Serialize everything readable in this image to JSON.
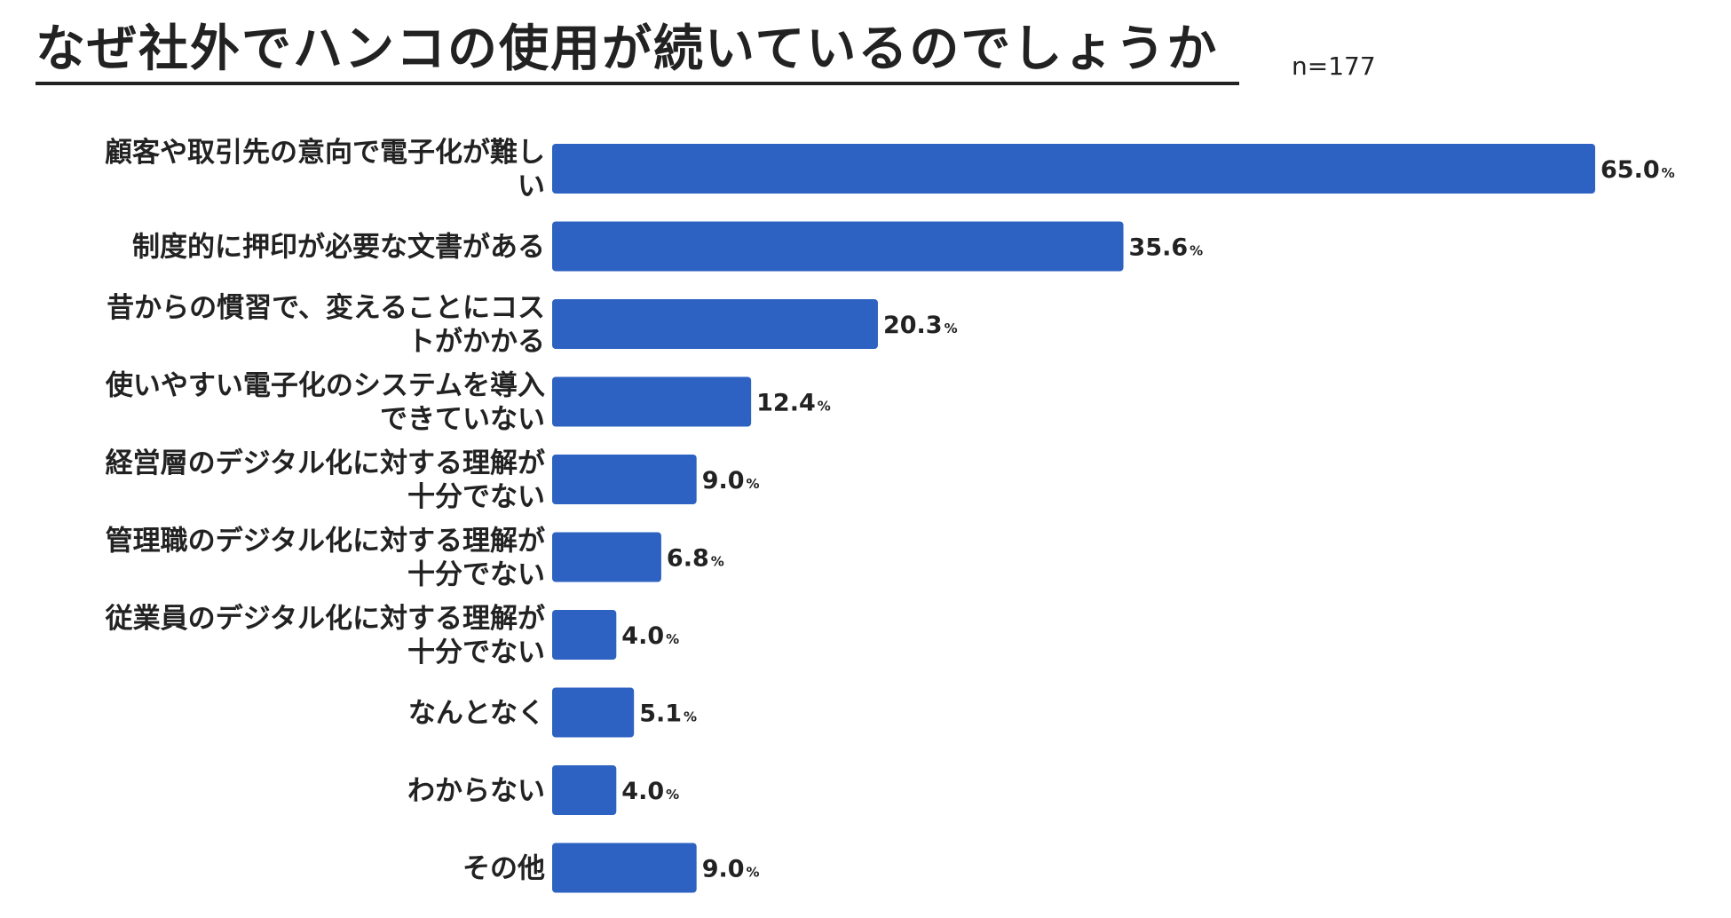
{
  "title": "なぜ社外でハンコの使用が続いているのでしょうか",
  "sample_label": "n=177",
  "colors": {
    "bar": "#2D62C2",
    "text": "#222222"
  },
  "chart_data": {
    "type": "bar",
    "orientation": "horizontal",
    "title": "なぜ社外でハンコの使用が続いているのでしょうか",
    "unit": "%",
    "categories": [
      [
        "顧客や取引先の意向で電子化が難し",
        "い"
      ],
      [
        "制度的に押印が必要な文書がある"
      ],
      [
        "昔からの慣習で、変えることにコス",
        "トがかかる"
      ],
      [
        "使いやすい電子化のシステムを導入",
        "できていない"
      ],
      [
        "経営層のデジタル化に対する理解が",
        "十分でない"
      ],
      [
        "管理職のデジタル化に対する理解が",
        "十分でない"
      ],
      [
        "従業員のデジタル化に対する理解が",
        "十分でない"
      ],
      [
        "なんとなく"
      ],
      [
        "わからない"
      ],
      [
        "その他"
      ]
    ],
    "values": [
      65.0,
      35.6,
      20.3,
      12.4,
      9.0,
      6.8,
      4.0,
      5.1,
      4.0,
      9.0
    ],
    "value_labels": [
      "65.0",
      "35.6",
      "20.3",
      "12.4",
      "9.0",
      "6.8",
      "4.0",
      "5.1",
      "4.0",
      "9.0"
    ],
    "xlim": [
      0,
      65.0
    ]
  }
}
